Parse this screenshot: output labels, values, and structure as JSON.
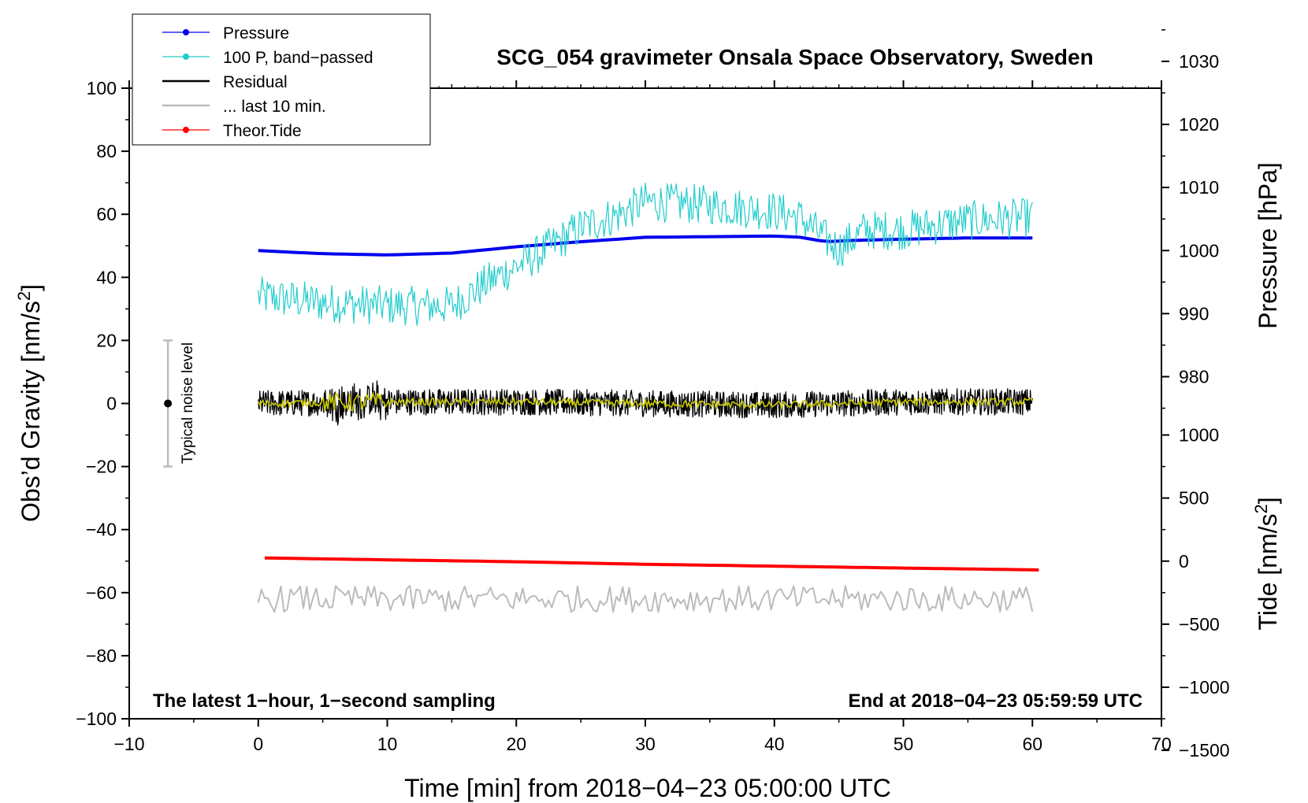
{
  "chart_data": {
    "type": "line",
    "title": "SCG_054 gravimeter Onsala Space Observatory, Sweden",
    "xlabel": "Time [min] from 2018−04−23 05:00:00 UTC",
    "xlim": [
      -10,
      70
    ],
    "x_ticks": [
      -10,
      0,
      10,
      20,
      30,
      40,
      50,
      60,
      70
    ],
    "x_tick_labels": [
      "−10",
      "0",
      "10",
      "20",
      "30",
      "40",
      "50",
      "60",
      "70"
    ],
    "left_axis": {
      "label_main": "Obs’d Gravity [nm/s",
      "label_sup": "2",
      "label_end": "]",
      "ylim": [
        -100,
        100
      ],
      "ticks": [
        -100,
        -80,
        -60,
        -40,
        -20,
        0,
        20,
        40,
        60,
        80,
        100
      ],
      "tick_labels": [
        "−100",
        "−80",
        "−60",
        "−40",
        "−20",
        "0",
        "20",
        "40",
        "60",
        "80",
        "100"
      ]
    },
    "pressure_axis": {
      "label": "Pressure [hPa]",
      "ticks": [
        980,
        990,
        1000,
        1010,
        1020,
        1030
      ],
      "tick_labels": [
        "980",
        "990",
        "1000",
        "1010",
        "1020",
        "1030"
      ],
      "gravity_at_ref": 48.5,
      "ref_hpa": 1000,
      "gravity_per_hpa": 2.0
    },
    "tide_axis": {
      "label_main": "Tide [nm/s",
      "label_sup": "2",
      "label_end": "]",
      "ticks": [
        -1500,
        -1000,
        -500,
        0,
        500,
        1000
      ],
      "tick_labels": [
        "−1500",
        "−1000",
        "−500",
        "0",
        "500",
        "1000"
      ],
      "gravity_at_zero": -50,
      "gravity_per_unit": 0.04
    },
    "series": [
      {
        "name": "Pressure",
        "color": "#0000ee",
        "axis": "pressure_hpa",
        "x": [
          0,
          5,
          10,
          15,
          20,
          25,
          30,
          35,
          40,
          42,
          44,
          46,
          50,
          55,
          60
        ],
        "y": [
          1000.0,
          999.5,
          999.3,
          999.6,
          1000.6,
          1001.4,
          1002.1,
          1002.2,
          1002.3,
          1002.1,
          1001.4,
          1001.6,
          1001.8,
          1002.0,
          1002.0
        ]
      },
      {
        "name": "100 P, band−passed",
        "color": "#22cccc",
        "axis": "gravity",
        "x": [
          0,
          5,
          10,
          15,
          18,
          22,
          25,
          28,
          30,
          35,
          40,
          42,
          44,
          45,
          47,
          50,
          55,
          60
        ],
        "y": [
          34,
          32,
          31,
          31,
          39,
          48,
          56,
          60,
          64,
          63,
          61,
          59,
          52,
          49,
          55,
          55,
          58,
          59
        ],
        "noise_amplitude": 4.5
      },
      {
        "name": "Residual",
        "color": "#000000",
        "axis": "gravity",
        "x": [
          0,
          10,
          20,
          30,
          40,
          50,
          60
        ],
        "y": [
          0,
          0.5,
          0.5,
          0,
          -0.5,
          0.5,
          0.5
        ],
        "noise_amplitude": 3.0
      },
      {
        "name": "... last 10 min.",
        "color": "#bbbbbb",
        "axis": "gravity",
        "x": [
          0,
          60
        ],
        "y": [
          -62,
          -62
        ],
        "noise_amplitude": 3.0
      },
      {
        "name": "Theor.Tide",
        "color": "#ff0000",
        "axis": "tide",
        "x": [
          0.5,
          10,
          20,
          30,
          40,
          50,
          60.5
        ],
        "y": [
          25,
          10,
          -5,
          -25,
          -40,
          -55,
          -70
        ]
      }
    ],
    "smoothed_residual_color": "#cccc00",
    "legend": {
      "position": "top-left",
      "items": [
        {
          "label": "Pressure",
          "color": "#0000ee",
          "marker": true
        },
        {
          "label": "100 P, band−passed",
          "color": "#22cccc",
          "marker": true
        },
        {
          "label": "Residual",
          "color": "#000000",
          "marker": false
        },
        {
          "label": "... last 10 min.",
          "color": "#bbbbbb",
          "marker": false
        },
        {
          "label": "Theor.Tide",
          "color": "#ff0000",
          "marker": true
        }
      ]
    },
    "noise_bar": {
      "label": "Typical noise level",
      "x": -7,
      "center": 0,
      "half_range": 20
    },
    "annotations": {
      "left": "The latest 1−hour, 1−second sampling",
      "right": "End at 2018−04−23 05:59:59 UTC"
    }
  }
}
